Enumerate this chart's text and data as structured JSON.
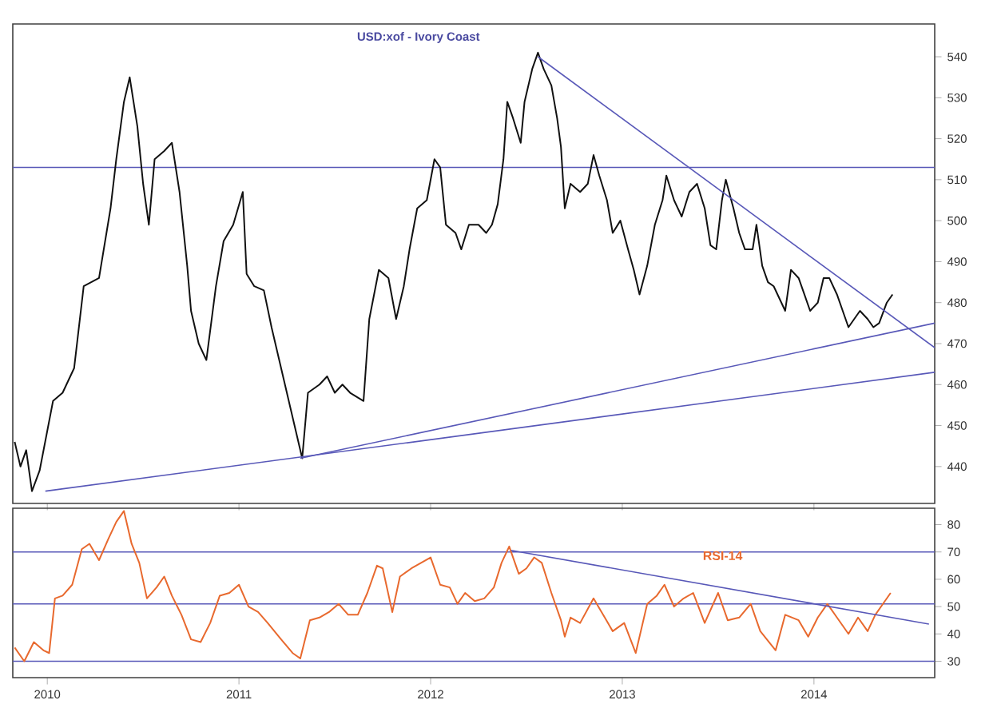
{
  "chart_data": [
    {
      "type": "line",
      "title": "USD:xof - Ivory Coast",
      "xlim": [
        2009.82,
        2014.63
      ],
      "ylim": [
        431,
        548
      ],
      "xticks": [
        2010,
        2011,
        2012,
        2013,
        2014
      ],
      "yticks": [
        440,
        450,
        460,
        470,
        480,
        490,
        500,
        510,
        520,
        530,
        540
      ],
      "tick_labels": "y",
      "ref_lines": [
        {
          "axis": "y",
          "value": 513,
          "color": "#5858b8"
        }
      ],
      "series": [
        {
          "color": "#111111",
          "x": [
            2009.83,
            2009.86,
            2009.89,
            2009.92,
            2009.96,
            2010.03,
            2010.08,
            2010.14,
            2010.19,
            2010.27,
            2010.33,
            2010.36,
            2010.4,
            2010.43,
            2010.47,
            2010.5,
            2010.53,
            2010.56,
            2010.61,
            2010.65,
            2010.69,
            2010.73,
            2010.75,
            2010.79,
            2010.83,
            2010.88,
            2010.92,
            2010.97,
            2011.02,
            2011.04,
            2011.08,
            2011.13,
            2011.17,
            2011.21,
            2011.25,
            2011.29,
            2011.33,
            2011.36,
            2011.42,
            2011.46,
            2011.5,
            2011.54,
            2011.58,
            2011.65,
            2011.68,
            2011.73,
            2011.78,
            2011.82,
            2011.86,
            2011.89,
            2011.93,
            2011.98,
            2012.02,
            2012.05,
            2012.08,
            2012.13,
            2012.16,
            2012.2,
            2012.25,
            2012.29,
            2012.32,
            2012.35,
            2012.38,
            2012.4,
            2012.43,
            2012.47,
            2012.49,
            2012.53,
            2012.56,
            2012.59,
            2012.63,
            2012.66,
            2012.68,
            2012.7,
            2012.73,
            2012.78,
            2012.82,
            2012.85,
            2012.88,
            2012.92,
            2012.95,
            2012.99,
            2013.03,
            2013.06,
            2013.09,
            2013.13,
            2013.17,
            2013.21,
            2013.23,
            2013.27,
            2013.31,
            2013.35,
            2013.39,
            2013.43,
            2013.46,
            2013.49,
            2013.52,
            2013.54,
            2013.58,
            2013.61,
            2013.64,
            2013.68,
            2013.7,
            2013.73,
            2013.76,
            2013.79,
            2013.83,
            2013.85,
            2013.88,
            2013.92,
            2013.95,
            2013.98,
            2014.02,
            2014.05,
            2014.08,
            2014.12,
            2014.15,
            2014.18,
            2014.21,
            2014.24,
            2014.28,
            2014.31,
            2014.34,
            2014.38,
            2014.41
          ],
          "values": [
            446,
            440,
            444,
            434,
            439,
            456,
            458,
            464,
            484,
            486,
            503,
            515,
            529,
            535,
            523,
            509,
            499,
            515,
            517,
            519,
            507,
            489,
            478,
            470,
            466,
            484,
            495,
            499,
            507,
            487,
            484,
            483,
            474,
            466,
            458,
            450,
            442,
            458,
            460,
            462,
            458,
            460,
            458,
            456,
            476,
            488,
            486,
            476,
            484,
            493,
            503,
            505,
            515,
            513,
            499,
            497,
            493,
            499,
            499,
            497,
            499,
            504,
            515,
            529,
            525,
            519,
            529,
            537,
            541,
            537,
            533,
            525,
            518,
            503,
            509,
            507,
            509,
            516,
            511,
            505,
            497,
            500,
            493,
            488,
            482,
            489,
            499,
            505,
            511,
            505,
            501,
            507,
            509,
            503,
            494,
            493,
            505,
            510,
            503,
            497,
            493,
            493,
            499,
            489,
            485,
            484,
            480,
            478,
            488,
            486,
            482,
            478,
            480,
            486,
            486,
            482,
            478,
            474,
            476,
            478,
            476,
            474,
            475,
            480,
            482
          ]
        },
        {
          "type": "line",
          "color": "#5858b8",
          "x": [
            2012.56,
            2014.63
          ],
          "values": [
            540,
            469
          ]
        },
        {
          "type": "line",
          "color": "#5858b8",
          "x": [
            2009.99,
            2014.63
          ],
          "values": [
            434,
            463
          ]
        },
        {
          "type": "line",
          "color": "#5858b8",
          "x": [
            2011.32,
            2014.63
          ],
          "values": [
            442,
            475
          ]
        }
      ]
    },
    {
      "type": "line",
      "xlim": [
        2009.82,
        2014.63
      ],
      "ylim": [
        24,
        86
      ],
      "xticks": [
        2010,
        2011,
        2012,
        2013,
        2014
      ],
      "yticks": [
        30,
        40,
        50,
        60,
        70,
        80
      ],
      "ref_lines": [
        {
          "axis": "y",
          "value": 70,
          "color": "#5858b8"
        },
        {
          "axis": "y",
          "value": 51,
          "color": "#5858b8"
        },
        {
          "axis": "y",
          "value": 30,
          "color": "#5858b8"
        }
      ],
      "series": [
        {
          "name": "RSI-14",
          "color": "#e8692e",
          "x": [
            2009.83,
            2009.88,
            2009.93,
            2009.98,
            2010.01,
            2010.04,
            2010.08,
            2010.13,
            2010.18,
            2010.22,
            2010.27,
            2010.32,
            2010.36,
            2010.4,
            2010.44,
            2010.48,
            2010.52,
            2010.57,
            2010.61,
            2010.65,
            2010.7,
            2010.75,
            2010.8,
            2010.85,
            2010.9,
            2010.95,
            2011.0,
            2011.05,
            2011.1,
            2011.15,
            2011.22,
            2011.28,
            2011.32,
            2011.37,
            2011.42,
            2011.47,
            2011.52,
            2011.57,
            2011.62,
            2011.67,
            2011.72,
            2011.75,
            2011.8,
            2011.84,
            2011.9,
            2011.95,
            2012.0,
            2012.05,
            2012.1,
            2012.14,
            2012.18,
            2012.23,
            2012.28,
            2012.33,
            2012.37,
            2012.41,
            2012.46,
            2012.5,
            2012.54,
            2012.58,
            2012.63,
            2012.68,
            2012.7,
            2012.73,
            2012.78,
            2012.85,
            2012.9,
            2012.95,
            2013.01,
            2013.07,
            2013.13,
            2013.18,
            2013.22,
            2013.27,
            2013.32,
            2013.37,
            2013.43,
            2013.5,
            2013.55,
            2013.61,
            2013.67,
            2013.72,
            2013.8,
            2013.85,
            2013.92,
            2013.97,
            2014.02,
            2014.07,
            2014.12,
            2014.18,
            2014.23,
            2014.28,
            2014.32,
            2014.37,
            2014.4
          ],
          "values": [
            35,
            30,
            37,
            34,
            33,
            53,
            54,
            58,
            71,
            73,
            67,
            75,
            81,
            85,
            73,
            66,
            53,
            57,
            61,
            54,
            47,
            38,
            37,
            44,
            54,
            55,
            58,
            50,
            48,
            44,
            38,
            33,
            31,
            45,
            46,
            48,
            51,
            47,
            47,
            55,
            65,
            64,
            48,
            61,
            64,
            66,
            68,
            58,
            57,
            51,
            55,
            52,
            53,
            57,
            66,
            72,
            62,
            64,
            68,
            66,
            55,
            45,
            39,
            46,
            44,
            53,
            47,
            41,
            44,
            33,
            51,
            54,
            58,
            50,
            53,
            55,
            44,
            55,
            45,
            46,
            51,
            41,
            34,
            47,
            45,
            39,
            46,
            51,
            46,
            40,
            46,
            41,
            47,
            52,
            55
          ]
        },
        {
          "type": "line",
          "color": "#5858b8",
          "x": [
            2012.42,
            2014.6
          ],
          "values": [
            70.6,
            43.6
          ]
        }
      ]
    }
  ]
}
